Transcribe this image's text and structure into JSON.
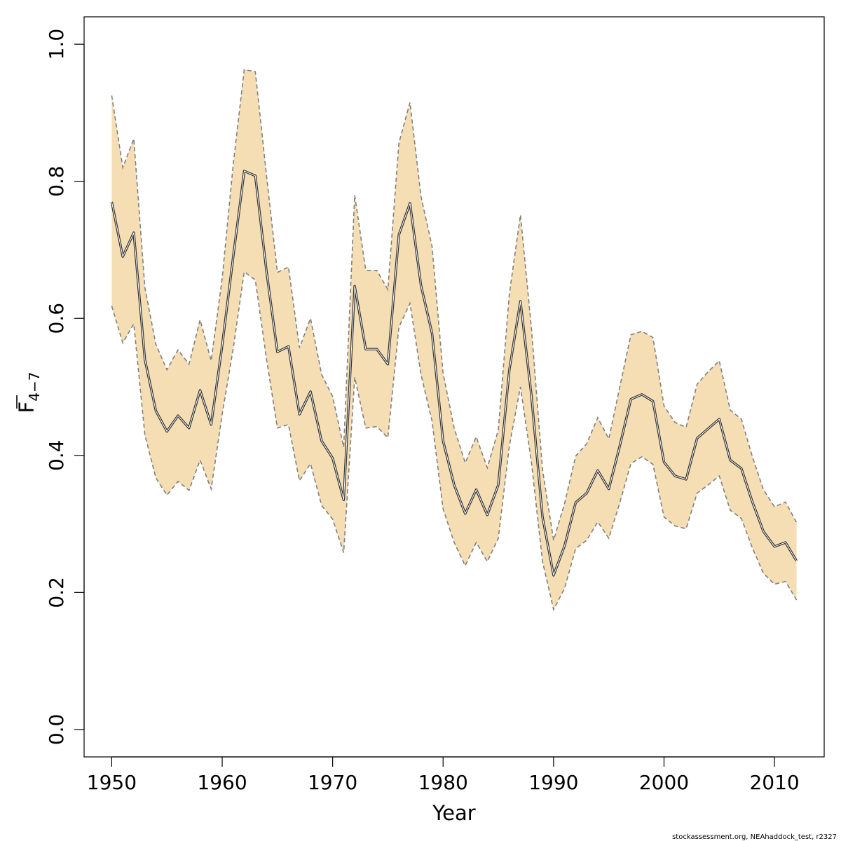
{
  "chart_data": {
    "type": "line",
    "title": "",
    "xlabel": "Year",
    "ylabel_main": "F",
    "ylabel_subscript": "4−7",
    "xlim": [
      1947.5,
      2014.5
    ],
    "ylim": [
      -0.04,
      1.04
    ],
    "x_ticks": [
      1950,
      1960,
      1970,
      1980,
      1990,
      2000,
      2010
    ],
    "x_tick_labels": [
      "1950",
      "1960",
      "1970",
      "1980",
      "1990",
      "2000",
      "2010"
    ],
    "y_ticks": [
      0.0,
      0.2,
      0.4,
      0.6,
      0.8,
      1.0
    ],
    "y_tick_labels": [
      "0.0",
      "0.2",
      "0.4",
      "0.6",
      "0.8",
      "1.0"
    ],
    "grid": false,
    "colors": {
      "band": "#F5DEB3",
      "line": "#333333",
      "bounds": "#808080"
    },
    "x": [
      1950,
      1951,
      1952,
      1953,
      1954,
      1955,
      1956,
      1957,
      1958,
      1959,
      1960,
      1961,
      1962,
      1963,
      1964,
      1965,
      1966,
      1967,
      1968,
      1969,
      1970,
      1971,
      1972,
      1973,
      1974,
      1975,
      1976,
      1977,
      1978,
      1979,
      1980,
      1981,
      1982,
      1983,
      1984,
      1985,
      1986,
      1987,
      1988,
      1989,
      1990,
      1991,
      1992,
      1993,
      1994,
      1995,
      1996,
      1997,
      1998,
      1999,
      2000,
      2001,
      2002,
      2003,
      2004,
      2005,
      2006,
      2007,
      2008,
      2009,
      2010,
      2011,
      2012
    ],
    "series": [
      {
        "role": "estimate",
        "values": [
          0.77,
          0.69,
          0.725,
          0.54,
          0.465,
          0.435,
          0.458,
          0.44,
          0.495,
          0.445,
          0.56,
          0.69,
          0.815,
          0.808,
          0.67,
          0.551,
          0.559,
          0.46,
          0.493,
          0.421,
          0.396,
          0.335,
          0.647,
          0.555,
          0.555,
          0.533,
          0.722,
          0.768,
          0.648,
          0.578,
          0.421,
          0.357,
          0.315,
          0.35,
          0.313,
          0.357,
          0.525,
          0.625,
          0.487,
          0.31,
          0.225,
          0.268,
          0.331,
          0.345,
          0.378,
          0.351,
          0.414,
          0.482,
          0.489,
          0.479,
          0.39,
          0.37,
          0.365,
          0.425,
          0.439,
          0.453,
          0.393,
          0.381,
          0.332,
          0.289,
          0.267,
          0.273,
          0.246
        ]
      },
      {
        "role": "upper",
        "values": [
          0.925,
          0.82,
          0.862,
          0.645,
          0.562,
          0.525,
          0.554,
          0.533,
          0.598,
          0.538,
          0.658,
          0.825,
          0.963,
          0.96,
          0.81,
          0.667,
          0.675,
          0.557,
          0.6,
          0.518,
          0.486,
          0.412,
          0.78,
          0.67,
          0.67,
          0.642,
          0.856,
          0.915,
          0.778,
          0.705,
          0.52,
          0.44,
          0.389,
          0.427,
          0.382,
          0.437,
          0.636,
          0.751,
          0.585,
          0.379,
          0.276,
          0.33,
          0.399,
          0.417,
          0.455,
          0.424,
          0.5,
          0.576,
          0.581,
          0.572,
          0.472,
          0.448,
          0.441,
          0.504,
          0.522,
          0.538,
          0.466,
          0.453,
          0.398,
          0.35,
          0.325,
          0.332,
          0.302
        ]
      },
      {
        "role": "lower",
        "values": [
          0.618,
          0.564,
          0.592,
          0.43,
          0.367,
          0.342,
          0.362,
          0.349,
          0.393,
          0.351,
          0.46,
          0.556,
          0.668,
          0.656,
          0.542,
          0.44,
          0.445,
          0.363,
          0.388,
          0.327,
          0.307,
          0.258,
          0.514,
          0.44,
          0.442,
          0.426,
          0.587,
          0.622,
          0.518,
          0.45,
          0.322,
          0.273,
          0.239,
          0.273,
          0.245,
          0.279,
          0.414,
          0.5,
          0.39,
          0.245,
          0.175,
          0.206,
          0.264,
          0.276,
          0.303,
          0.279,
          0.331,
          0.388,
          0.398,
          0.387,
          0.31,
          0.297,
          0.293,
          0.345,
          0.357,
          0.37,
          0.32,
          0.308,
          0.265,
          0.228,
          0.212,
          0.216,
          0.189
        ]
      }
    ]
  },
  "footer": {
    "text": "stockassessment.org, NEAhaddock_test, r2327"
  }
}
